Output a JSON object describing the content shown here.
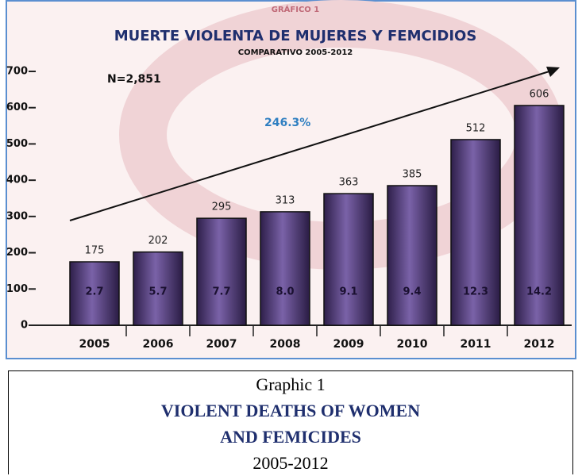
{
  "chart_data": {
    "type": "bar",
    "supertitle": "GRÁFICO 1",
    "title": "MUERTE VIOLENTA DE MUJERES Y FEMCIDIOS",
    "subtitle": "COMPARATIVO 2005-2012",
    "annotations": [
      "N=2,851",
      "246.3%"
    ],
    "categories": [
      "2005",
      "2006",
      "2007",
      "2008",
      "2009",
      "2010",
      "2011",
      "2012"
    ],
    "values": [
      175,
      202,
      295,
      313,
      363,
      385,
      512,
      606
    ],
    "inner_labels": [
      "2.7",
      "5.7",
      "7.7",
      "8.0",
      "9.1",
      "9.4",
      "12.3",
      "14.2"
    ],
    "color": "#4a3470",
    "ylim": [
      0,
      700
    ],
    "yticks": [
      0,
      100,
      200,
      300,
      400,
      500,
      600,
      700
    ]
  },
  "caption": {
    "lines": [
      "Graphic 1",
      "VIOLENT DEATHS OF WOMEN",
      "AND FEMICIDES",
      "2005-2012"
    ]
  }
}
